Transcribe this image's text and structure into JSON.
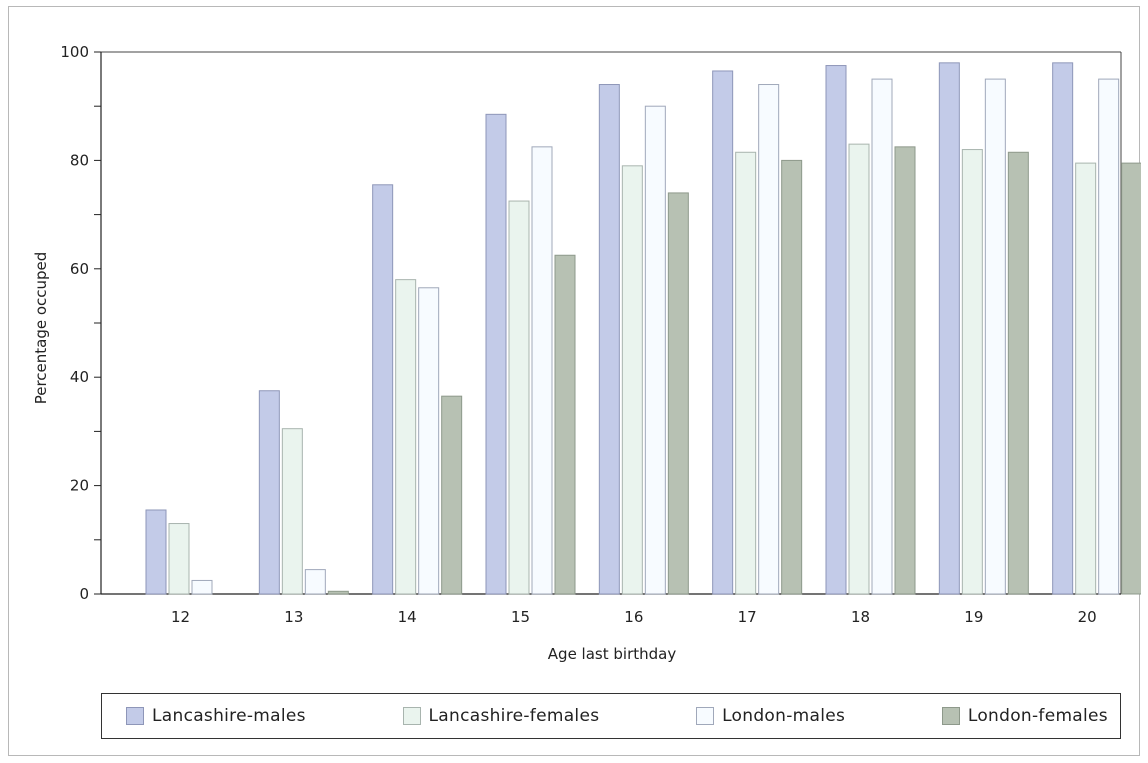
{
  "chart_data": {
    "type": "bar",
    "xlabel": "Age last birthday",
    "ylabel": "Percentage occuped",
    "ylim": [
      0,
      100
    ],
    "yticks": [
      "0",
      "20",
      "40",
      "60",
      "80",
      "100"
    ],
    "categories": [
      "12",
      "13",
      "14",
      "15",
      "16",
      "17",
      "18",
      "19",
      "20"
    ],
    "legend_position": "bottom",
    "series": [
      {
        "name": "Lancashire-males",
        "fill": "#c3cbe8",
        "stroke": "#8e96b8",
        "values": [
          15.5,
          37.5,
          75.5,
          88.5,
          94,
          96.5,
          97.5,
          98,
          98
        ]
      },
      {
        "name": "Lancashire-females",
        "fill": "#eaf4ee",
        "stroke": "#a8b4ae",
        "values": [
          13,
          30.5,
          58,
          72.5,
          79,
          81.5,
          83,
          82,
          79.5
        ]
      },
      {
        "name": "London-males",
        "fill": "#f7fbff",
        "stroke": "#a0a8ba",
        "values": [
          2.5,
          4.5,
          56.5,
          82.5,
          90,
          94,
          95,
          95,
          95
        ]
      },
      {
        "name": "London-females",
        "fill": "#b7c1b3",
        "stroke": "#8e998b",
        "values": [
          0,
          0.5,
          36.5,
          62.5,
          74,
          80,
          82.5,
          81.5,
          79.5
        ]
      }
    ]
  }
}
